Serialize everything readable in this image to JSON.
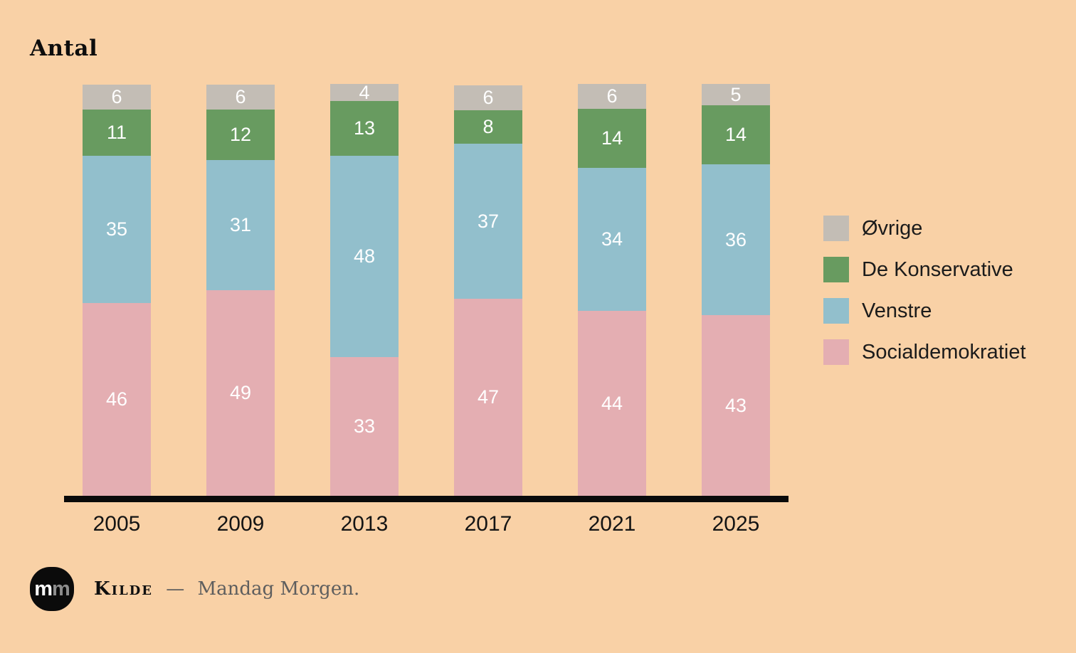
{
  "title": "Antal",
  "colors": {
    "background": "#f9d1a6",
    "axis": "#0a0a0a",
    "bar_value_label": "#ffffff"
  },
  "chart_data": {
    "type": "bar",
    "stacked": true,
    "title": "Antal",
    "ylabel": "Antal",
    "grid": false,
    "legend_position": "right",
    "legend_order": "reversed",
    "value_labels": true,
    "categories": [
      "2005",
      "2009",
      "2013",
      "2017",
      "2021",
      "2025"
    ],
    "series": [
      {
        "name": "Socialdemokratiet",
        "color": "#e4aeb2",
        "values": [
          46,
          49,
          33,
          47,
          44,
          43
        ]
      },
      {
        "name": "Venstre",
        "color": "#92bfcc",
        "values": [
          35,
          31,
          48,
          37,
          34,
          36
        ]
      },
      {
        "name": "De Konservative",
        "color": "#689b60",
        "values": [
          11,
          12,
          13,
          8,
          14,
          14
        ]
      },
      {
        "name": "Øvrige",
        "color": "#c3bdb5",
        "values": [
          6,
          6,
          4,
          6,
          6,
          5
        ]
      }
    ]
  },
  "footer": {
    "logo_text_first": "m",
    "logo_text_second": "m",
    "source_label": "Kilde",
    "separator": "—",
    "source_text": "Mandag Morgen."
  }
}
